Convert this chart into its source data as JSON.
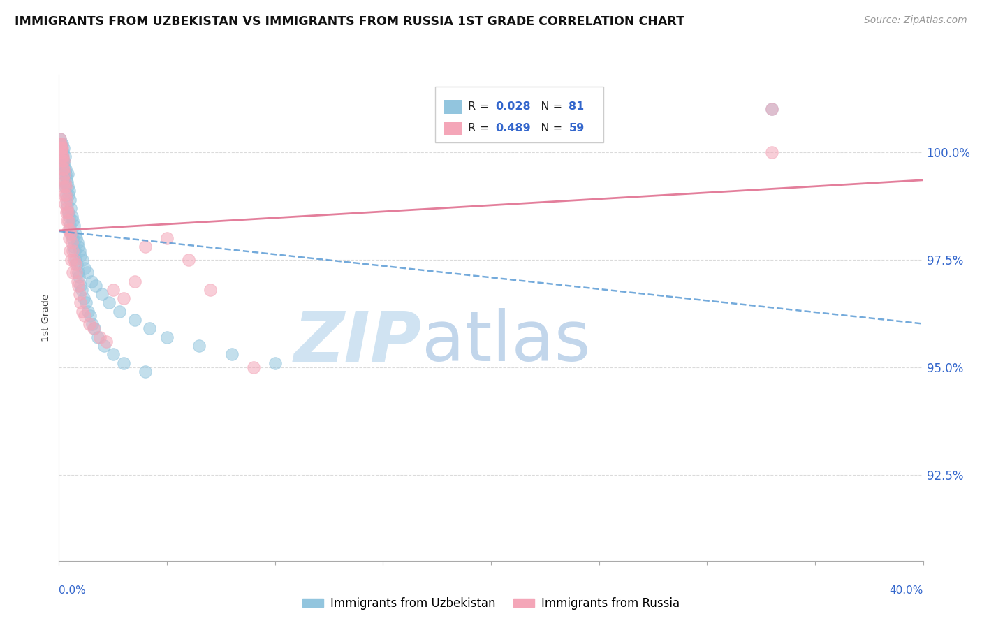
{
  "title": "IMMIGRANTS FROM UZBEKISTAN VS IMMIGRANTS FROM RUSSIA 1ST GRADE CORRELATION CHART",
  "source_text": "Source: ZipAtlas.com",
  "ylabel": "1st Grade",
  "color_uzbekistan": "#92c5de",
  "color_russia": "#f4a6b8",
  "color_trendline_uzbekistan": "#5b9bd5",
  "color_trendline_russia": "#e07090",
  "color_axis_labels": "#3366cc",
  "color_grid": "#cccccc",
  "background_color": "#ffffff",
  "xlim": [
    0.0,
    40.0
  ],
  "ylim": [
    90.5,
    101.8
  ],
  "yticks": [
    92.5,
    95.0,
    97.5,
    100.0
  ],
  "ytick_labels": [
    "92.5%",
    "95.0%",
    "97.5%",
    "100.0%"
  ],
  "legend_R_uzbekistan": "0.028",
  "legend_N_uzbekistan": "81",
  "legend_R_russia": "0.489",
  "legend_N_russia": "59",
  "watermark_zip_color": "#c8dff0",
  "watermark_atlas_color": "#b8cfe8",
  "uz_x": [
    0.05,
    0.08,
    0.1,
    0.12,
    0.13,
    0.15,
    0.16,
    0.18,
    0.2,
    0.22,
    0.25,
    0.27,
    0.3,
    0.32,
    0.35,
    0.38,
    0.4,
    0.42,
    0.45,
    0.48,
    0.5,
    0.55,
    0.6,
    0.65,
    0.7,
    0.75,
    0.8,
    0.85,
    0.9,
    0.95,
    1.0,
    1.1,
    1.2,
    1.3,
    1.5,
    1.7,
    2.0,
    2.3,
    2.8,
    3.5,
    4.2,
    5.0,
    6.5,
    8.0,
    10.0,
    0.06,
    0.09,
    0.11,
    0.14,
    0.17,
    0.19,
    0.23,
    0.26,
    0.28,
    0.33,
    0.37,
    0.43,
    0.47,
    0.52,
    0.58,
    0.63,
    0.68,
    0.73,
    0.78,
    0.83,
    0.88,
    0.93,
    0.98,
    1.05,
    1.15,
    1.25,
    1.35,
    1.45,
    1.55,
    1.65,
    1.8,
    2.1,
    2.5,
    3.0,
    4.0,
    33.0
  ],
  "uz_y": [
    100.2,
    100.1,
    100.0,
    100.1,
    100.0,
    99.9,
    100.2,
    100.0,
    100.1,
    99.8,
    99.7,
    99.9,
    99.5,
    99.6,
    99.4,
    99.3,
    99.5,
    99.2,
    99.0,
    99.1,
    98.9,
    98.7,
    98.5,
    98.4,
    98.3,
    98.1,
    98.0,
    97.9,
    97.8,
    97.7,
    97.6,
    97.5,
    97.3,
    97.2,
    97.0,
    96.9,
    96.7,
    96.5,
    96.3,
    96.1,
    95.9,
    95.7,
    95.5,
    95.3,
    95.1,
    100.3,
    100.2,
    100.0,
    99.9,
    99.8,
    99.7,
    99.5,
    99.3,
    99.2,
    99.0,
    98.8,
    98.6,
    98.5,
    98.3,
    98.1,
    98.0,
    97.8,
    97.7,
    97.5,
    97.4,
    97.2,
    97.1,
    96.9,
    96.8,
    96.6,
    96.5,
    96.3,
    96.2,
    96.0,
    95.9,
    95.7,
    95.5,
    95.3,
    95.1,
    94.9,
    101.0
  ],
  "ru_x": [
    0.05,
    0.08,
    0.1,
    0.12,
    0.15,
    0.18,
    0.2,
    0.22,
    0.25,
    0.28,
    0.3,
    0.32,
    0.35,
    0.38,
    0.4,
    0.45,
    0.5,
    0.55,
    0.6,
    0.65,
    0.7,
    0.75,
    0.8,
    0.85,
    0.9,
    0.95,
    1.0,
    1.1,
    1.2,
    1.4,
    1.6,
    1.9,
    2.2,
    2.5,
    3.0,
    3.5,
    4.0,
    5.0,
    6.0,
    7.0,
    9.0,
    0.06,
    0.09,
    0.11,
    0.14,
    0.17,
    0.19,
    0.23,
    0.26,
    0.28,
    0.33,
    0.37,
    0.43,
    0.47,
    0.52,
    0.58,
    0.63,
    33.0,
    33.0
  ],
  "ru_y": [
    100.3,
    100.2,
    100.1,
    100.0,
    100.1,
    99.9,
    99.8,
    99.6,
    99.5,
    99.3,
    99.2,
    99.0,
    98.9,
    98.7,
    98.6,
    98.4,
    98.2,
    98.1,
    97.9,
    97.7,
    97.5,
    97.4,
    97.2,
    97.0,
    96.9,
    96.7,
    96.5,
    96.3,
    96.2,
    96.0,
    95.9,
    95.7,
    95.6,
    96.8,
    96.6,
    97.0,
    97.8,
    98.0,
    97.5,
    96.8,
    95.0,
    100.2,
    100.1,
    99.9,
    99.8,
    99.6,
    99.4,
    99.2,
    99.0,
    98.8,
    98.6,
    98.4,
    98.2,
    98.0,
    97.7,
    97.5,
    97.2,
    100.0,
    101.0
  ]
}
